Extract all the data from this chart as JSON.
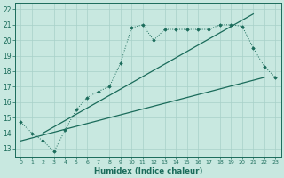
{
  "bg_color": "#c8e8e0",
  "grid_color": "#a8d0c8",
  "line_color": "#1a6b5a",
  "xlabel": "Humidex (Indice chaleur)",
  "xlim": [
    -0.5,
    23.5
  ],
  "ylim": [
    12.5,
    22.4
  ],
  "yticks": [
    13,
    14,
    15,
    16,
    17,
    18,
    19,
    20,
    21,
    22
  ],
  "xticks": [
    0,
    1,
    2,
    3,
    4,
    5,
    6,
    7,
    8,
    9,
    10,
    11,
    12,
    13,
    14,
    15,
    16,
    17,
    18,
    19,
    20,
    21,
    22,
    23
  ],
  "line1_x": [
    0,
    1,
    2,
    3,
    4,
    5,
    6,
    7,
    8,
    9,
    10,
    11,
    12,
    13,
    14,
    15,
    16,
    17,
    18,
    19,
    20,
    21,
    22,
    23
  ],
  "line1_y": [
    14.7,
    14.0,
    13.5,
    12.8,
    14.2,
    15.5,
    16.3,
    16.7,
    17.0,
    18.5,
    20.8,
    21.0,
    20.0,
    20.7,
    20.7,
    20.7,
    20.7,
    20.7,
    21.0,
    21.0,
    20.9,
    19.5,
    18.3,
    17.6
  ],
  "line2_x": [
    2,
    21
  ],
  "line2_y": [
    14.0,
    21.7
  ],
  "line3_x": [
    0,
    22
  ],
  "line3_y": [
    13.5,
    17.6
  ]
}
